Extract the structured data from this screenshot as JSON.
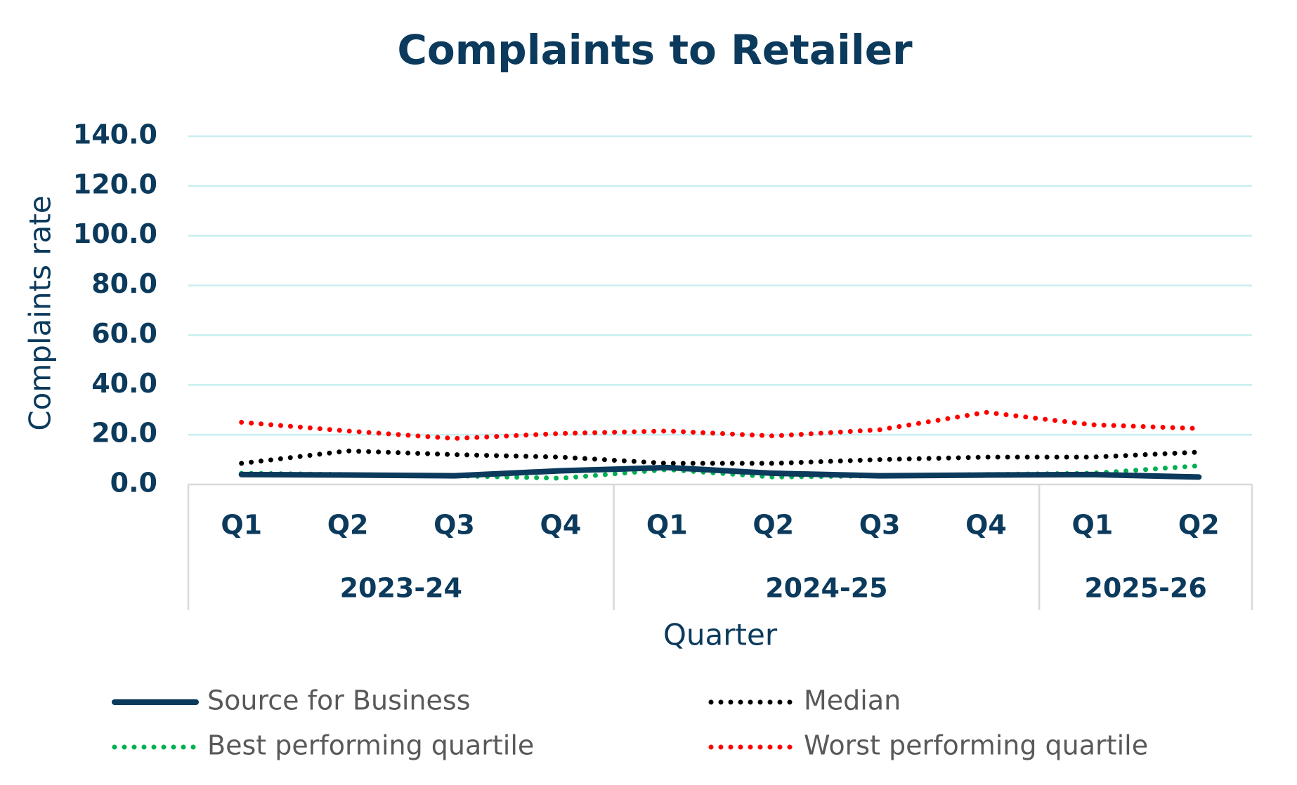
{
  "chart_data": {
    "type": "line",
    "title": "Complaints to Retailer",
    "y_label": "Complaints rate",
    "x_label": "Quarter",
    "categories": [
      "Q1",
      "Q2",
      "Q3",
      "Q4",
      "Q1",
      "Q2",
      "Q3",
      "Q4",
      "Q1",
      "Q2"
    ],
    "groups": [
      {
        "label": "2023-24",
        "count": 4
      },
      {
        "label": "2024-25",
        "count": 4
      },
      {
        "label": "2025-26",
        "count": 2
      }
    ],
    "series": [
      {
        "name": "Source for Business",
        "color": "#0b3a5c",
        "style": "solid",
        "values": [
          4,
          3.8,
          3.5,
          5.5,
          6.8,
          4.5,
          3.5,
          3.8,
          4,
          3
        ]
      },
      {
        "name": "Median",
        "color": "#000000",
        "style": "dotted",
        "values": [
          8.5,
          13.5,
          12,
          11,
          8.5,
          8.5,
          10,
          11,
          11,
          13
        ]
      },
      {
        "name": "Best performing quartile",
        "color": "#00b050",
        "style": "dotted",
        "values": [
          4.5,
          4,
          3.5,
          2.5,
          6,
          3,
          3.5,
          4,
          4.5,
          7.5
        ]
      },
      {
        "name": "Worst performing quartile",
        "color": "#ff0000",
        "style": "dotted",
        "values": [
          25,
          21.5,
          18.5,
          20.5,
          21.5,
          19.5,
          22,
          29,
          24,
          22.5
        ]
      }
    ],
    "ylim": [
      0,
      140
    ],
    "yticks": [
      {
        "value": 0,
        "label": "0.0"
      },
      {
        "value": 20,
        "label": "20.0"
      },
      {
        "value": 40,
        "label": "40.0"
      },
      {
        "value": 60,
        "label": "60.0"
      },
      {
        "value": 80,
        "label": "80.0"
      },
      {
        "value": 100,
        "label": "100.0"
      },
      {
        "value": 120,
        "label": "120.0"
      },
      {
        "value": 140,
        "label": "140.0"
      }
    ],
    "grid": true,
    "legend": "bottom"
  }
}
